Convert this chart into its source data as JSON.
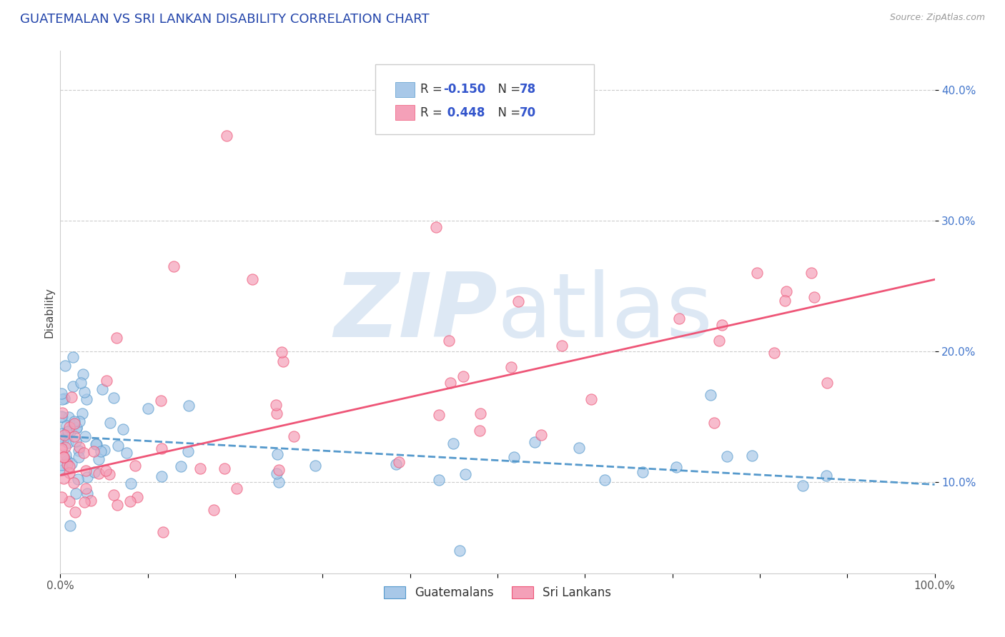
{
  "title": "GUATEMALAN VS SRI LANKAN DISABILITY CORRELATION CHART",
  "source": "Source: ZipAtlas.com",
  "ylabel": "Disability",
  "xlim": [
    0.0,
    1.0
  ],
  "ylim": [
    0.03,
    0.43
  ],
  "guatemalan_R": -0.15,
  "guatemalan_N": 78,
  "srilankans_R": 0.448,
  "srilankans_N": 70,
  "guatemalan_color": "#a8c8e8",
  "srilankans_color": "#f4a0b8",
  "guatemalan_line_color": "#5599cc",
  "srilankans_line_color": "#ee5577",
  "title_color": "#2244aa",
  "source_color": "#999999",
  "background_color": "#ffffff",
  "grid_color": "#cccccc",
  "watermark_color": "#dde8f4",
  "ytick_color": "#4477cc",
  "xtick_color": "#555555",
  "ylabel_color": "#444444",
  "legend_text_color": "#333333",
  "legend_value_color": "#3355cc",
  "g_line_x0": 0.0,
  "g_line_y0": 0.135,
  "g_line_x1": 1.0,
  "g_line_y1": 0.098,
  "s_line_x0": 0.0,
  "s_line_y0": 0.105,
  "s_line_x1": 1.0,
  "s_line_y1": 0.255
}
